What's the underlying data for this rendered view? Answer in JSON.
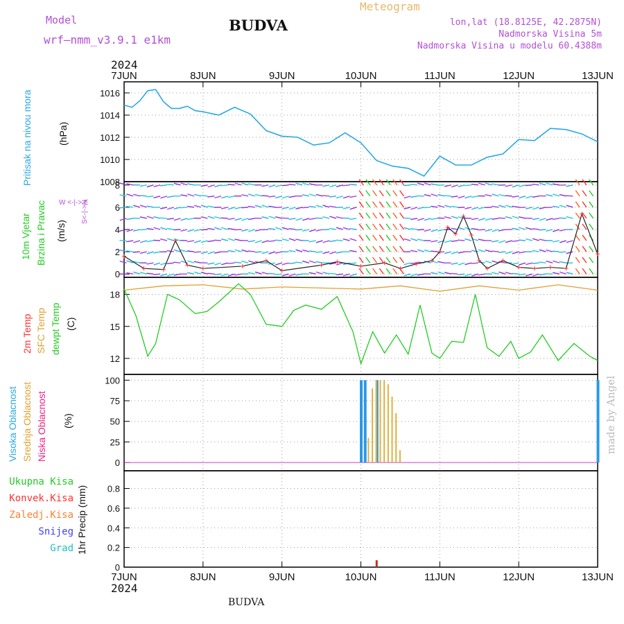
{
  "header": {
    "model_label": "Model",
    "model_value": "wrf—nmm_v3.9.1  e1km",
    "title": "BUDVA",
    "meteogram_label": "Meteogram",
    "coords": "lon,lat (18.8125E, 42.2875N)",
    "altitude": "Nadmorska Visina 5m",
    "model_altitude": "Nadmorska Visina u modelu 60.4388m"
  },
  "footer": {
    "title": "BUDVA"
  },
  "watermark": "made by Angel",
  "time_axis": {
    "year": "2024",
    "labels": [
      "7JUN",
      "8JUN",
      "9JUN",
      "10JUN",
      "11JUN",
      "12JUN",
      "13JUN"
    ]
  },
  "colors": {
    "pressure": "#2aa8e6",
    "temp_2m": "#ff3030",
    "sfc_temp": "#e0a030",
    "dewpt": "#22cc22",
    "cloud_high": "#2a98e6",
    "cloud_mid": "#e0b040",
    "cloud_low": "#ee2288",
    "purple": "#b34fd6"
  },
  "panels": {
    "pressure": {
      "label1": "Pritisak na nivou mora",
      "unit": "(hPa)",
      "ticks": [
        "1016",
        "1014",
        "1012",
        "1010",
        "1008"
      ]
    },
    "wind": {
      "label1": "10m Vjetar",
      "label2": "Brzina i Pravac",
      "unit": "(m/s)",
      "compass": "W <-|-> E",
      "compass_v": "S<-|->N",
      "ticks": [
        "8",
        "6",
        "4",
        "2",
        "0"
      ]
    },
    "temp": {
      "label1": "2m Temp",
      "label2": "SFC Temp",
      "label3": "dewpt Temp",
      "unit": "(C)",
      "ticks": [
        "18",
        "15",
        "12"
      ]
    },
    "cloud": {
      "label1": "Visoka Oblacnost",
      "label2": "Srednja Oblacnost",
      "label3": "Niska Oblacnost",
      "unit": "(%)",
      "ticks": [
        "100",
        "75",
        "50",
        "25",
        "0"
      ]
    },
    "precip": {
      "legend": [
        "Ukupna Kisa",
        "Konvek.Kisa",
        "Zaledj.Kisa",
        "Snijeg",
        "Grad"
      ],
      "legend_colors": [
        "#22cc22",
        "#ff3030",
        "#ff8030",
        "#4040ff",
        "#20c0c0"
      ],
      "unit": "1hr Precip (mm)",
      "ticks": [
        "0.8",
        "0.6",
        "0.4",
        "0.2",
        "0"
      ]
    }
  },
  "chart_data": [
    {
      "type": "line",
      "title": "Pritisak na nivou mora",
      "ylabel": "(hPa)",
      "ylim": [
        1008,
        1017
      ],
      "x_days_from_7jun": [
        0,
        0.1,
        0.2,
        0.3,
        0.4,
        0.5,
        0.6,
        0.7,
        0.8,
        0.9,
        1.0,
        1.2,
        1.4,
        1.6,
        1.8,
        2.0,
        2.2,
        2.4,
        2.6,
        2.8,
        3.0,
        3.2,
        3.4,
        3.6,
        3.8,
        4.0,
        4.2,
        4.4,
        4.6,
        4.8,
        5.0,
        5.2,
        5.4,
        5.6,
        5.8,
        6.0
      ],
      "values": [
        1014.9,
        1014.7,
        1015.3,
        1016.2,
        1016.3,
        1015.2,
        1014.6,
        1014.6,
        1014.8,
        1014.4,
        1014.3,
        1014.0,
        1014.7,
        1014.1,
        1012.6,
        1012.1,
        1012.0,
        1011.3,
        1011.5,
        1012.4,
        1011.5,
        1009.9,
        1009.4,
        1009.2,
        1008.5,
        1010.3,
        1009.5,
        1009.5,
        1010.2,
        1010.5,
        1011.8,
        1011.7,
        1012.8,
        1012.7,
        1012.3,
        1011.6
      ],
      "series_note": "approximate"
    },
    {
      "type": "line",
      "title": "10m Vjetar Brzina i Pravac",
      "ylabel": "(m/s)",
      "ylim": [
        0,
        8
      ],
      "x_days_from_7jun": [
        0,
        0.25,
        0.5,
        0.65,
        0.8,
        1.0,
        1.5,
        1.8,
        2.0,
        2.5,
        2.7,
        3.0,
        3.3,
        3.5,
        3.7,
        3.9,
        4.0,
        4.1,
        4.2,
        4.3,
        4.4,
        4.5,
        4.6,
        4.8,
        5.0,
        5.2,
        5.4,
        5.6,
        5.8,
        6.0
      ],
      "values": [
        1.6,
        0.5,
        0.4,
        3.0,
        0.8,
        0.5,
        0.7,
        1.2,
        0.3,
        0.8,
        1.1,
        0.7,
        1.0,
        0.5,
        0.9,
        1.2,
        2.0,
        4.2,
        3.6,
        5.2,
        3.5,
        1.2,
        0.5,
        1.2,
        0.6,
        0.5,
        0.6,
        0.5,
        5.4,
        1.8
      ],
      "series_note": "approximate"
    },
    {
      "type": "line",
      "title": "2m Temp / SFC Temp / dewpt Temp",
      "ylabel": "(C)",
      "ylim": [
        10.5,
        19.5
      ],
      "series": [
        {
          "name": "SFC Temp",
          "x_days_from_7jun": [
            0,
            0.5,
            1.0,
            1.5,
            2.0,
            2.5,
            3.0,
            3.5,
            4.0,
            4.5,
            5.0,
            5.5,
            6.0
          ],
          "values": [
            18.4,
            18.8,
            18.9,
            18.5,
            18.7,
            18.6,
            18.5,
            18.8,
            18.3,
            18.8,
            18.4,
            18.9,
            18.4
          ]
        },
        {
          "name": "dewpt Temp",
          "x_days_from_7jun": [
            0,
            0.15,
            0.3,
            0.4,
            0.55,
            0.7,
            0.9,
            1.05,
            1.2,
            1.45,
            1.6,
            1.8,
            2.0,
            2.15,
            2.3,
            2.5,
            2.7,
            2.9,
            3.0,
            3.15,
            3.3,
            3.45,
            3.6,
            3.75,
            3.9,
            4.0,
            4.15,
            4.3,
            4.45,
            4.6,
            4.75,
            4.9,
            5.0,
            5.15,
            5.3,
            5.5,
            5.7,
            5.9,
            6.0
          ],
          "values": [
            18.5,
            16.0,
            12.2,
            13.4,
            18.0,
            17.5,
            16.2,
            16.4,
            17.3,
            19.0,
            18.0,
            15.2,
            15.0,
            16.5,
            17.0,
            16.6,
            17.8,
            14.5,
            11.5,
            14.5,
            12.5,
            14.2,
            12.4,
            17.0,
            12.5,
            12.0,
            13.6,
            13.5,
            18.0,
            13.0,
            12.2,
            13.6,
            12.0,
            12.6,
            14.2,
            11.8,
            13.4,
            12.2,
            11.8
          ]
        }
      ]
    },
    {
      "type": "bar",
      "title": "Visoka / Srednja / Niska Oblacnost",
      "ylabel": "(%)",
      "ylim": [
        0,
        100
      ],
      "series": [
        {
          "name": "Visoka Oblacnost",
          "x_days_from_7jun": [
            3.0,
            3.05,
            3.2,
            6.0
          ],
          "values": [
            100,
            100,
            100,
            100
          ]
        },
        {
          "name": "Srednja Oblacnost",
          "x_days_from_7jun": [
            3.1,
            3.15,
            3.2,
            3.25,
            3.3,
            3.35,
            3.4,
            3.45,
            3.5
          ],
          "values": [
            30,
            90,
            100,
            100,
            100,
            95,
            80,
            60,
            15
          ]
        },
        {
          "name": "Niska Oblacnost",
          "x_days_from_7jun": [],
          "values": []
        }
      ]
    },
    {
      "type": "bar",
      "title": "1hr Precip",
      "ylabel": "(mm)",
      "ylim": [
        0,
        1
      ],
      "series": [
        {
          "name": "Konvek.Kisa",
          "x_days_from_7jun": [
            3.2
          ],
          "values": [
            0.07
          ]
        }
      ]
    }
  ]
}
